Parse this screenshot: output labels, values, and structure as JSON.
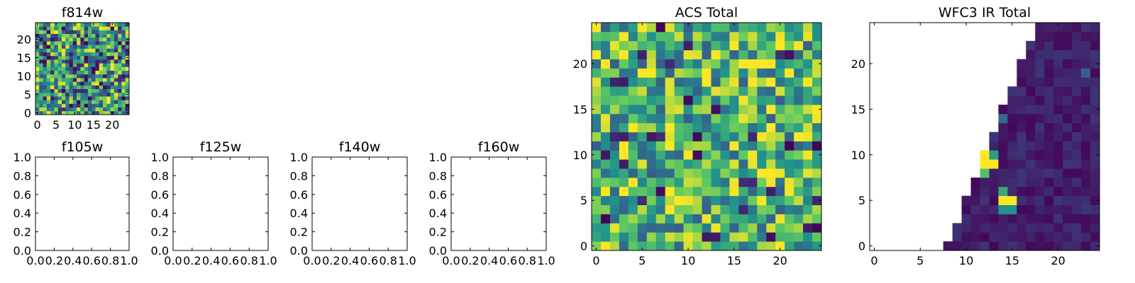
{
  "colormap": [
    "#440154",
    "#3b528b",
    "#21918c",
    "#5ec962",
    "#fde725"
  ],
  "chart_data": [
    {
      "type": "heatmap",
      "title": "f814w",
      "grid_size": 25,
      "xticks": [
        "0",
        "5",
        "10",
        "15",
        "20"
      ],
      "yticks": [
        "0",
        "5",
        "10",
        "15",
        "20"
      ],
      "xlim": [
        -0.5,
        24.5
      ],
      "ylim": [
        -0.5,
        24.5
      ],
      "value_range": [
        0,
        1
      ],
      "distribution": "random noise"
    },
    {
      "type": "empty",
      "title": "f105w",
      "xticks": [
        "0.0",
        "0.2",
        "0.4",
        "0.6",
        "0.8",
        "1.0"
      ],
      "yticks": [
        "0.0",
        "0.2",
        "0.4",
        "0.6",
        "0.8",
        "1.0"
      ],
      "xlim": [
        0,
        1
      ],
      "ylim": [
        0,
        1
      ]
    },
    {
      "type": "empty",
      "title": "f125w",
      "xticks": [
        "0.0",
        "0.2",
        "0.4",
        "0.6",
        "0.8",
        "1.0"
      ],
      "yticks": [
        "0.0",
        "0.2",
        "0.4",
        "0.6",
        "0.8",
        "1.0"
      ],
      "xlim": [
        0,
        1
      ],
      "ylim": [
        0,
        1
      ]
    },
    {
      "type": "empty",
      "title": "f140w",
      "xticks": [
        "0.0",
        "0.2",
        "0.4",
        "0.6",
        "0.8",
        "1.0"
      ],
      "yticks": [
        "0.0",
        "0.2",
        "0.4",
        "0.6",
        "0.8",
        "1.0"
      ],
      "xlim": [
        0,
        1
      ],
      "ylim": [
        0,
        1
      ]
    },
    {
      "type": "empty",
      "title": "f160w",
      "xticks": [
        "0.0",
        "0.2",
        "0.4",
        "0.6",
        "0.8",
        "1.0"
      ],
      "yticks": [
        "0.0",
        "0.2",
        "0.4",
        "0.6",
        "0.8",
        "1.0"
      ],
      "xlim": [
        0,
        1
      ],
      "ylim": [
        0,
        1
      ]
    },
    {
      "type": "heatmap",
      "title": "ACS Total",
      "grid_size": 25,
      "xticks": [
        "0",
        "5",
        "10",
        "15",
        "20"
      ],
      "yticks": [
        "0",
        "5",
        "10",
        "15",
        "20"
      ],
      "xlim": [
        -0.5,
        24.5
      ],
      "ylim": [
        -0.5,
        24.5
      ],
      "value_range": [
        0,
        1
      ],
      "distribution": "random noise, mostly high values"
    },
    {
      "type": "heatmap",
      "title": "WFC3 IR Total",
      "grid_size": 25,
      "xticks": [
        "0",
        "5",
        "10",
        "15",
        "20"
      ],
      "yticks": [
        "0",
        "5",
        "10",
        "15",
        "20"
      ],
      "xlim": [
        -0.5,
        24.5
      ],
      "ylim": [
        -0.5,
        24.5
      ],
      "value_range": [
        0,
        1
      ],
      "masked_region": "upper-left triangle (blank)",
      "distribution": "mostly low values with a few bright pixels",
      "bright_pixels": [
        {
          "x": 12,
          "y": 10,
          "value": 1.0
        },
        {
          "x": 12,
          "y": 9,
          "value": 1.0
        },
        {
          "x": 13,
          "y": 9,
          "value": 1.0
        },
        {
          "x": 13,
          "y": 10,
          "value": 0.55
        },
        {
          "x": 12,
          "y": 8,
          "value": 0.7
        },
        {
          "x": 14,
          "y": 5,
          "value": 1.0
        },
        {
          "x": 15,
          "y": 5,
          "value": 1.0
        },
        {
          "x": 14,
          "y": 4,
          "value": 0.5
        },
        {
          "x": 15,
          "y": 4,
          "value": 0.5
        },
        {
          "x": 14,
          "y": 6,
          "value": 0.6
        },
        {
          "x": 14,
          "y": 14,
          "value": 0.35
        },
        {
          "x": 23,
          "y": 19,
          "value": 0.3
        }
      ]
    }
  ]
}
